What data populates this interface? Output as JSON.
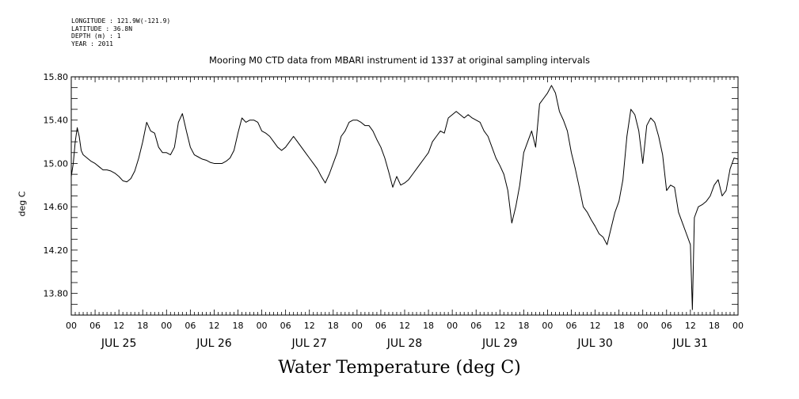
{
  "meta_lines": [
    "LONGITUDE : 121.9W(-121.9)",
    "LATITUDE : 36.8N",
    "DEPTH (m) : 1",
    "YEAR : 2011"
  ],
  "chart_data": {
    "type": "line",
    "title": "Mooring M0 CTD data from MBARI instrument id 1337 at original sampling intervals",
    "ylabel": "deg C",
    "xlabel": "Water Temperature (deg C)",
    "ylim": [
      13.6,
      15.8
    ],
    "yticks": [
      "15.80",
      "15.40",
      "15.00",
      "14.60",
      "14.20",
      "13.80"
    ],
    "ytick_values": [
      15.8,
      15.4,
      15.0,
      14.6,
      14.2,
      13.8
    ],
    "xlim_hours": [
      0,
      168
    ],
    "xtick_labels": [
      "00",
      "06",
      "12",
      "18",
      "00",
      "06",
      "12",
      "18",
      "00",
      "06",
      "12",
      "18",
      "00",
      "06",
      "12",
      "18",
      "00",
      "06",
      "12",
      "18",
      "00",
      "06",
      "12",
      "18",
      "00",
      "06",
      "12",
      "18",
      "00"
    ],
    "day_labels": [
      "JUL 25",
      "JUL 26",
      "JUL 27",
      "JUL 28",
      "JUL 29",
      "JUL 30",
      "JUL 31"
    ],
    "grid": false,
    "series": [
      {
        "color": "#000000",
        "points": [
          [
            0,
            14.88
          ],
          [
            0.5,
            15.0
          ],
          [
            1,
            15.2
          ],
          [
            1.5,
            15.33
          ],
          [
            2,
            15.25
          ],
          [
            2.5,
            15.12
          ],
          [
            3,
            15.08
          ],
          [
            4,
            15.05
          ],
          [
            5,
            15.02
          ],
          [
            6,
            15.0
          ],
          [
            7,
            14.97
          ],
          [
            8,
            14.94
          ],
          [
            9,
            14.94
          ],
          [
            10,
            14.93
          ],
          [
            11,
            14.91
          ],
          [
            12,
            14.88
          ],
          [
            13,
            14.84
          ],
          [
            14,
            14.83
          ],
          [
            15,
            14.86
          ],
          [
            16,
            14.93
          ],
          [
            17,
            15.05
          ],
          [
            18,
            15.2
          ],
          [
            19,
            15.38
          ],
          [
            20,
            15.3
          ],
          [
            21,
            15.28
          ],
          [
            22,
            15.15
          ],
          [
            23,
            15.1
          ],
          [
            24,
            15.1
          ],
          [
            25,
            15.08
          ],
          [
            26,
            15.15
          ],
          [
            27,
            15.38
          ],
          [
            28,
            15.46
          ],
          [
            29,
            15.3
          ],
          [
            30,
            15.15
          ],
          [
            31,
            15.08
          ],
          [
            32,
            15.06
          ],
          [
            33,
            15.04
          ],
          [
            34,
            15.03
          ],
          [
            35,
            15.01
          ],
          [
            36,
            15.0
          ],
          [
            37,
            15.0
          ],
          [
            38,
            15.0
          ],
          [
            39,
            15.02
          ],
          [
            40,
            15.05
          ],
          [
            41,
            15.12
          ],
          [
            42,
            15.28
          ],
          [
            43,
            15.42
          ],
          [
            44,
            15.38
          ],
          [
            45,
            15.4
          ],
          [
            46,
            15.4
          ],
          [
            47,
            15.38
          ],
          [
            48,
            15.3
          ],
          [
            49,
            15.28
          ],
          [
            50,
            15.25
          ],
          [
            51,
            15.2
          ],
          [
            52,
            15.15
          ],
          [
            53,
            15.12
          ],
          [
            54,
            15.15
          ],
          [
            55,
            15.2
          ],
          [
            56,
            15.25
          ],
          [
            57,
            15.2
          ],
          [
            58,
            15.15
          ],
          [
            59,
            15.1
          ],
          [
            60,
            15.05
          ],
          [
            61,
            15.0
          ],
          [
            62,
            14.95
          ],
          [
            63,
            14.88
          ],
          [
            64,
            14.82
          ],
          [
            65,
            14.9
          ],
          [
            66,
            15.0
          ],
          [
            67,
            15.1
          ],
          [
            68,
            15.25
          ],
          [
            69,
            15.3
          ],
          [
            70,
            15.38
          ],
          [
            71,
            15.4
          ],
          [
            72,
            15.4
          ],
          [
            73,
            15.38
          ],
          [
            74,
            15.35
          ],
          [
            75,
            15.35
          ],
          [
            76,
            15.3
          ],
          [
            77,
            15.22
          ],
          [
            78,
            15.15
          ],
          [
            79,
            15.05
          ],
          [
            80,
            14.92
          ],
          [
            81,
            14.78
          ],
          [
            82,
            14.88
          ],
          [
            83,
            14.8
          ],
          [
            84,
            14.82
          ],
          [
            85,
            14.85
          ],
          [
            86,
            14.9
          ],
          [
            87,
            14.95
          ],
          [
            88,
            15.0
          ],
          [
            89,
            15.05
          ],
          [
            90,
            15.1
          ],
          [
            91,
            15.2
          ],
          [
            92,
            15.25
          ],
          [
            93,
            15.3
          ],
          [
            94,
            15.28
          ],
          [
            95,
            15.42
          ],
          [
            96,
            15.45
          ],
          [
            97,
            15.48
          ],
          [
            98,
            15.45
          ],
          [
            99,
            15.42
          ],
          [
            100,
            15.45
          ],
          [
            101,
            15.42
          ],
          [
            102,
            15.4
          ],
          [
            103,
            15.38
          ],
          [
            104,
            15.3
          ],
          [
            105,
            15.25
          ],
          [
            106,
            15.15
          ],
          [
            107,
            15.05
          ],
          [
            108,
            14.98
          ],
          [
            109,
            14.9
          ],
          [
            110,
            14.75
          ],
          [
            111,
            14.45
          ],
          [
            112,
            14.6
          ],
          [
            113,
            14.8
          ],
          [
            114,
            15.1
          ],
          [
            115,
            15.2
          ],
          [
            116,
            15.3
          ],
          [
            117,
            15.15
          ],
          [
            118,
            15.55
          ],
          [
            119,
            15.6
          ],
          [
            120,
            15.65
          ],
          [
            121,
            15.72
          ],
          [
            122,
            15.65
          ],
          [
            123,
            15.48
          ],
          [
            124,
            15.4
          ],
          [
            125,
            15.3
          ],
          [
            126,
            15.1
          ],
          [
            127,
            14.95
          ],
          [
            128,
            14.78
          ],
          [
            129,
            14.6
          ],
          [
            130,
            14.55
          ],
          [
            131,
            14.48
          ],
          [
            132,
            14.42
          ],
          [
            133,
            14.35
          ],
          [
            134,
            14.32
          ],
          [
            135,
            14.25
          ],
          [
            136,
            14.4
          ],
          [
            137,
            14.55
          ],
          [
            138,
            14.65
          ],
          [
            139,
            14.85
          ],
          [
            140,
            15.25
          ],
          [
            141,
            15.5
          ],
          [
            142,
            15.45
          ],
          [
            143,
            15.3
          ],
          [
            144,
            15.0
          ],
          [
            145,
            15.35
          ],
          [
            146,
            15.42
          ],
          [
            147,
            15.38
          ],
          [
            148,
            15.25
          ],
          [
            149,
            15.08
          ],
          [
            150,
            14.75
          ],
          [
            151,
            14.8
          ],
          [
            152,
            14.78
          ],
          [
            153,
            14.55
          ],
          [
            154,
            14.45
          ],
          [
            155,
            14.35
          ],
          [
            156,
            14.25
          ],
          [
            156.5,
            13.65
          ],
          [
            157,
            14.5
          ],
          [
            158,
            14.6
          ],
          [
            159,
            14.62
          ],
          [
            160,
            14.65
          ],
          [
            161,
            14.7
          ],
          [
            162,
            14.8
          ],
          [
            163,
            14.85
          ],
          [
            164,
            14.7
          ],
          [
            165,
            14.75
          ],
          [
            166,
            14.95
          ],
          [
            167,
            15.05
          ],
          [
            168,
            15.04
          ]
        ]
      }
    ]
  }
}
